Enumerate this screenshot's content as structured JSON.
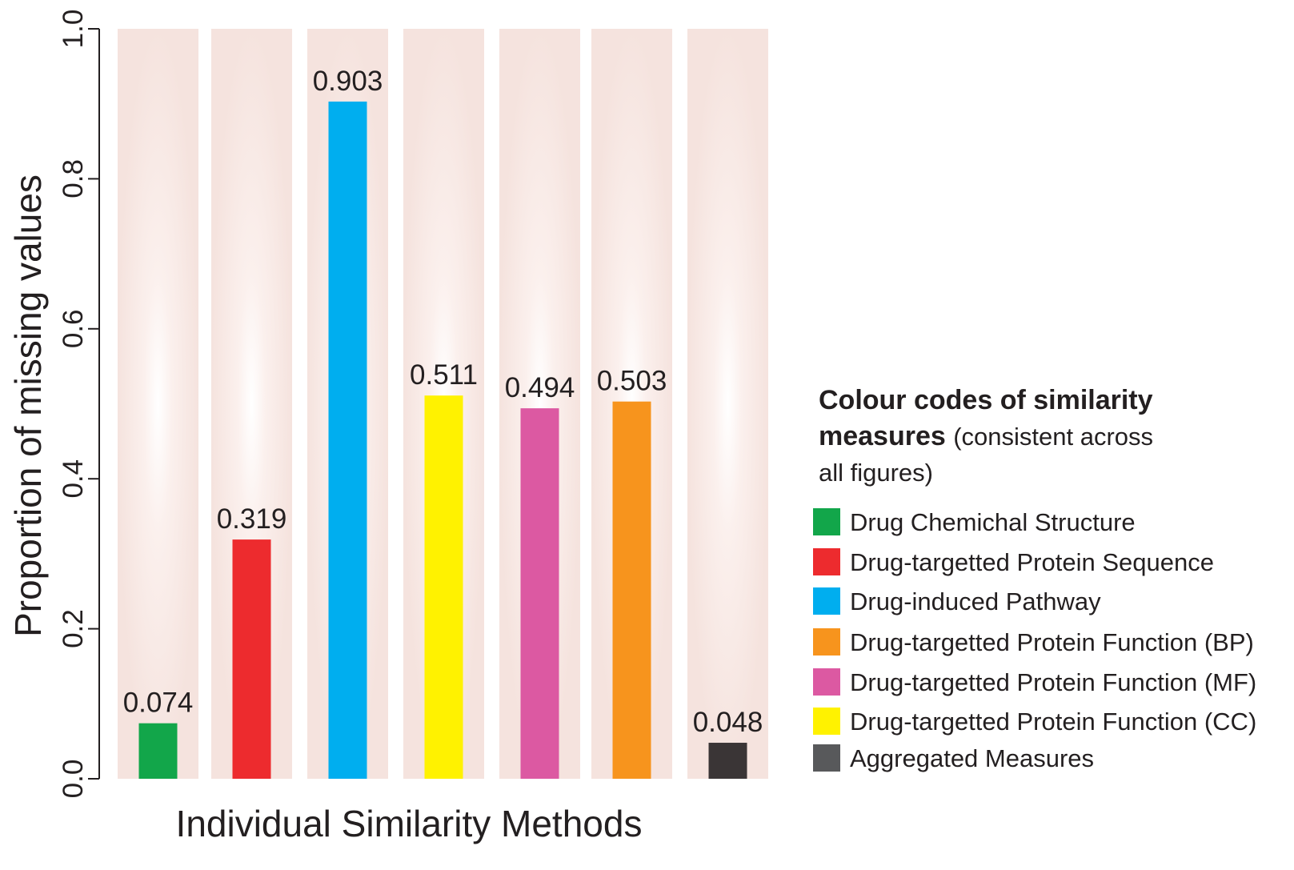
{
  "chart_data": {
    "type": "bar",
    "ylabel": "Proportion of missing values",
    "xlabel": "Individual Similarity Methods",
    "ylim": [
      0,
      1.0
    ],
    "yticks": [
      "0.0",
      "0.2",
      "0.4",
      "0.6",
      "0.8",
      "1.0"
    ],
    "values": [
      0.074,
      0.319,
      0.903,
      0.511,
      0.494,
      0.503,
      0.048
    ],
    "data_labels": [
      "0.074",
      "0.319",
      "0.903",
      "0.511",
      "0.494",
      "0.503",
      "0.048"
    ],
    "colors": [
      "#12a64a",
      "#ed2b2e",
      "#00aeef",
      "#fff200",
      "#dc59a2",
      "#f7941d",
      "#3a3536"
    ],
    "background_band_color": "#f7e6e2"
  },
  "legend": {
    "title_bold": "Colour codes of similarity measures",
    "title_bold_line1": "Colour codes of similarity",
    "title_bold_line2": "measures",
    "title_note_line1": "(consistent across",
    "title_note_line2": "all figures)",
    "items": [
      {
        "label": "Drug Chemichal Structure",
        "color": "#12a64a"
      },
      {
        "label": "Drug-targetted Protein Sequence",
        "color": "#ed2b2e"
      },
      {
        "label": "Drug-induced Pathway",
        "color": "#00aeef"
      },
      {
        "label": "Drug-targetted Protein Function (BP)",
        "color": "#f7941d"
      },
      {
        "label": "Drug-targetted Protein Function (MF)",
        "color": "#dc59a2"
      },
      {
        "label": "Drug-targetted Protein Function (CC)",
        "color": "#fff200"
      },
      {
        "label": "Aggregated Measures",
        "color": "#58595b"
      }
    ]
  }
}
